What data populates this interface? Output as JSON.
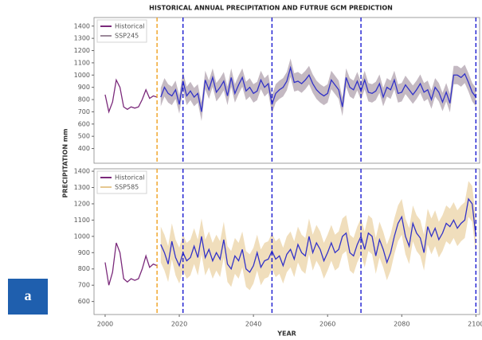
{
  "chart_data": [
    {
      "type": "line",
      "title": "HISTORICAL ANNUAL PRECIPITATION AND FUTRUE GCM PREDICTION",
      "ylabel": "PRECIPITATION mm",
      "x": [
        2000,
        2001,
        2002,
        2003,
        2004,
        2005,
        2006,
        2007,
        2008,
        2009,
        2010,
        2011,
        2012,
        2013,
        2014,
        2015,
        2016,
        2017,
        2018,
        2019,
        2020,
        2021,
        2022,
        2023,
        2024,
        2025,
        2026,
        2027,
        2028,
        2029,
        2030,
        2031,
        2032,
        2033,
        2034,
        2035,
        2036,
        2037,
        2038,
        2039,
        2040,
        2041,
        2042,
        2043,
        2044,
        2045,
        2046,
        2047,
        2048,
        2049,
        2050,
        2051,
        2052,
        2053,
        2054,
        2055,
        2056,
        2057,
        2058,
        2059,
        2060,
        2061,
        2062,
        2063,
        2064,
        2065,
        2066,
        2067,
        2068,
        2069,
        2070,
        2071,
        2072,
        2073,
        2074,
        2075,
        2076,
        2077,
        2078,
        2079,
        2080,
        2081,
        2082,
        2083,
        2084,
        2085,
        2086,
        2087,
        2088,
        2089,
        2090,
        2091,
        2092,
        2093,
        2094,
        2095,
        2096,
        2097,
        2098,
        2099,
        2100
      ],
      "series": [
        {
          "name": "Historical",
          "color": "#7b2a7b",
          "values": [
            840,
            700,
            780,
            960,
            900,
            740,
            720,
            740,
            730,
            740,
            800,
            880,
            810,
            830,
            820,
            null,
            null,
            null,
            null,
            null,
            null,
            null,
            null,
            null,
            null,
            null,
            null,
            null,
            null,
            null,
            null,
            null,
            null,
            null,
            null,
            null,
            null,
            null,
            null,
            null,
            null,
            null,
            null,
            null,
            null,
            null,
            null,
            null,
            null,
            null,
            null,
            null,
            null,
            null,
            null,
            null,
            null,
            null,
            null,
            null,
            null,
            null,
            null,
            null,
            null,
            null,
            null,
            null,
            null,
            null,
            null,
            null,
            null,
            null,
            null,
            null,
            null,
            null,
            null,
            null,
            null,
            null,
            null,
            null,
            null,
            null,
            null,
            null,
            null,
            null,
            null,
            null,
            null,
            null,
            null,
            null,
            null,
            null,
            null,
            null,
            null
          ]
        },
        {
          "name": "SSP245",
          "color": "#3232c8",
          "band_color": "#9c8a9a",
          "spread": 75,
          "values": [
            null,
            null,
            null,
            null,
            null,
            null,
            null,
            null,
            null,
            null,
            null,
            null,
            null,
            null,
            null,
            820,
            900,
            850,
            830,
            880,
            760,
            950,
            830,
            870,
            820,
            850,
            700,
            960,
            880,
            980,
            860,
            900,
            950,
            830,
            980,
            850,
            920,
            980,
            870,
            900,
            850,
            870,
            960,
            900,
            930,
            760,
            850,
            880,
            900,
            950,
            1060,
            940,
            950,
            930,
            960,
            1000,
            930,
            880,
            850,
            830,
            850,
            960,
            920,
            880,
            740,
            980,
            900,
            880,
            950,
            870,
            960,
            860,
            850,
            870,
            930,
            820,
            900,
            880,
            960,
            850,
            860,
            920,
            880,
            840,
            880,
            930,
            860,
            880,
            800,
            900,
            860,
            780,
            860,
            770,
            1000,
            1000,
            980,
            1010,
            940,
            860,
            820
          ]
        }
      ],
      "xlim": [
        1997,
        2101
      ],
      "ylim": [
        280,
        1470
      ],
      "yticks": [
        400,
        500,
        600,
        700,
        800,
        900,
        1000,
        1100,
        1200,
        1300,
        1400
      ],
      "vlines": [
        {
          "x": 2014,
          "color": "#f0a020"
        },
        {
          "x": 2021,
          "color": "#1a1ad0"
        },
        {
          "x": 2045,
          "color": "#1a1ad0"
        },
        {
          "x": 2069,
          "color": "#1a1ad0"
        },
        {
          "x": 2100,
          "color": "#1a1ad0"
        }
      ],
      "legend": "upper left"
    },
    {
      "type": "line",
      "xlabel": "YEAR",
      "panel_label": "a",
      "x": [
        2000,
        2001,
        2002,
        2003,
        2004,
        2005,
        2006,
        2007,
        2008,
        2009,
        2010,
        2011,
        2012,
        2013,
        2014,
        2015,
        2016,
        2017,
        2018,
        2019,
        2020,
        2021,
        2022,
        2023,
        2024,
        2025,
        2026,
        2027,
        2028,
        2029,
        2030,
        2031,
        2032,
        2033,
        2034,
        2035,
        2036,
        2037,
        2038,
        2039,
        2040,
        2041,
        2042,
        2043,
        2044,
        2045,
        2046,
        2047,
        2048,
        2049,
        2050,
        2051,
        2052,
        2053,
        2054,
        2055,
        2056,
        2057,
        2058,
        2059,
        2060,
        2061,
        2062,
        2063,
        2064,
        2065,
        2066,
        2067,
        2068,
        2069,
        2070,
        2071,
        2072,
        2073,
        2074,
        2075,
        2076,
        2077,
        2078,
        2079,
        2080,
        2081,
        2082,
        2083,
        2084,
        2085,
        2086,
        2087,
        2088,
        2089,
        2090,
        2091,
        2092,
        2093,
        2094,
        2095,
        2096,
        2097,
        2098,
        2099,
        2100
      ],
      "series": [
        {
          "name": "Historical",
          "color": "#7b2a7b",
          "values": [
            840,
            700,
            780,
            960,
            900,
            740,
            720,
            740,
            730,
            740,
            800,
            880,
            810,
            830,
            820,
            null,
            null,
            null,
            null,
            null,
            null,
            null,
            null,
            null,
            null,
            null,
            null,
            null,
            null,
            null,
            null,
            null,
            null,
            null,
            null,
            null,
            null,
            null,
            null,
            null,
            null,
            null,
            null,
            null,
            null,
            null,
            null,
            null,
            null,
            null,
            null,
            null,
            null,
            null,
            null,
            null,
            null,
            null,
            null,
            null,
            null,
            null,
            null,
            null,
            null,
            null,
            null,
            null,
            null,
            null,
            null,
            null,
            null,
            null,
            null,
            null,
            null,
            null,
            null,
            null,
            null,
            null,
            null,
            null,
            null,
            null,
            null,
            null,
            null,
            null,
            null,
            null,
            null,
            null,
            null,
            null,
            null,
            null,
            null,
            null,
            null
          ]
        },
        {
          "name": "SSP585",
          "color": "#3232c8",
          "band_color": "#e6c890",
          "spread": 110,
          "values": [
            null,
            null,
            null,
            null,
            null,
            null,
            null,
            null,
            null,
            null,
            null,
            null,
            null,
            null,
            null,
            950,
            900,
            830,
            970,
            870,
            820,
            900,
            850,
            870,
            940,
            870,
            1000,
            870,
            920,
            850,
            900,
            860,
            980,
            830,
            800,
            880,
            850,
            920,
            800,
            780,
            820,
            900,
            810,
            850,
            860,
            910,
            860,
            880,
            820,
            890,
            920,
            860,
            950,
            900,
            880,
            1000,
            900,
            960,
            920,
            850,
            900,
            960,
            900,
            920,
            1000,
            1020,
            900,
            880,
            950,
            1000,
            920,
            1020,
            1000,
            880,
            980,
            920,
            840,
            900,
            1000,
            1080,
            1120,
            1000,
            940,
            1080,
            1020,
            990,
            900,
            1060,
            1000,
            1050,
            980,
            1020,
            1080,
            1060,
            1100,
            1050,
            1080,
            1100,
            1230,
            1200,
            1000
          ]
        }
      ],
      "xlim": [
        1997,
        2101
      ],
      "ylim": [
        520,
        1415
      ],
      "xticks": [
        2000,
        2020,
        2040,
        2060,
        2080,
        2100
      ],
      "yticks": [
        600,
        700,
        800,
        900,
        1000,
        1100,
        1200,
        1300,
        1400
      ],
      "vlines": [
        {
          "x": 2014,
          "color": "#f0a020"
        },
        {
          "x": 2021,
          "color": "#1a1ad0"
        },
        {
          "x": 2045,
          "color": "#1a1ad0"
        },
        {
          "x": 2069,
          "color": "#1a1ad0"
        },
        {
          "x": 2100,
          "color": "#1a1ad0"
        }
      ],
      "legend": "upper left"
    }
  ]
}
